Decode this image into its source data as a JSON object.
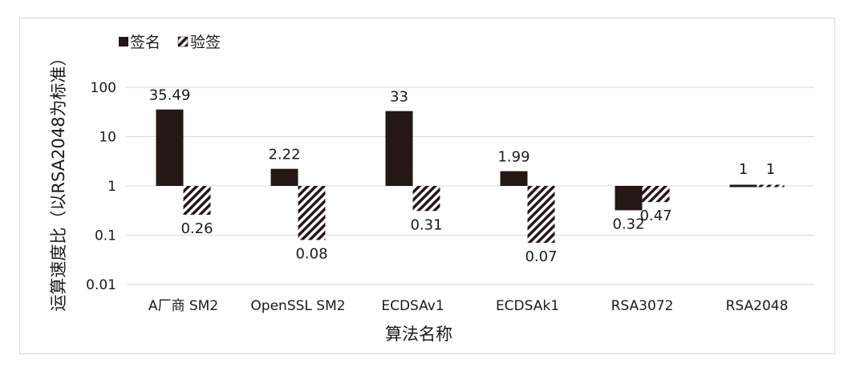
{
  "chart_data": {
    "type": "bar",
    "scale": "log",
    "ylim": [
      0.01,
      100
    ],
    "yticks": [
      "0.01",
      "0.1",
      "1",
      "10",
      "100"
    ],
    "grid": true,
    "legend_position": "top-left",
    "xlabel": "算法名称",
    "ylabel": "运算速度比（以RSA2048为标准）",
    "categories": [
      "A厂商 SM2",
      "OpenSSL SM2",
      "ECDSAv1",
      "ECDSAk1",
      "RSA3072",
      "RSA2048"
    ],
    "series": [
      {
        "name": "签名",
        "color": "#231815",
        "pattern": "solid",
        "values": [
          35.49,
          2.22,
          33,
          1.99,
          0.32,
          1
        ],
        "labels": [
          "35.49",
          "2.22",
          "33",
          "1.99",
          "0.32",
          "1"
        ]
      },
      {
        "name": "验签",
        "color": "#231815",
        "pattern": "diagonal-hatch",
        "values": [
          0.26,
          0.08,
          0.31,
          0.07,
          0.47,
          1
        ],
        "labels": [
          "0.26",
          "0.08",
          "0.31",
          "0.07",
          "0.47",
          "1"
        ]
      }
    ]
  }
}
